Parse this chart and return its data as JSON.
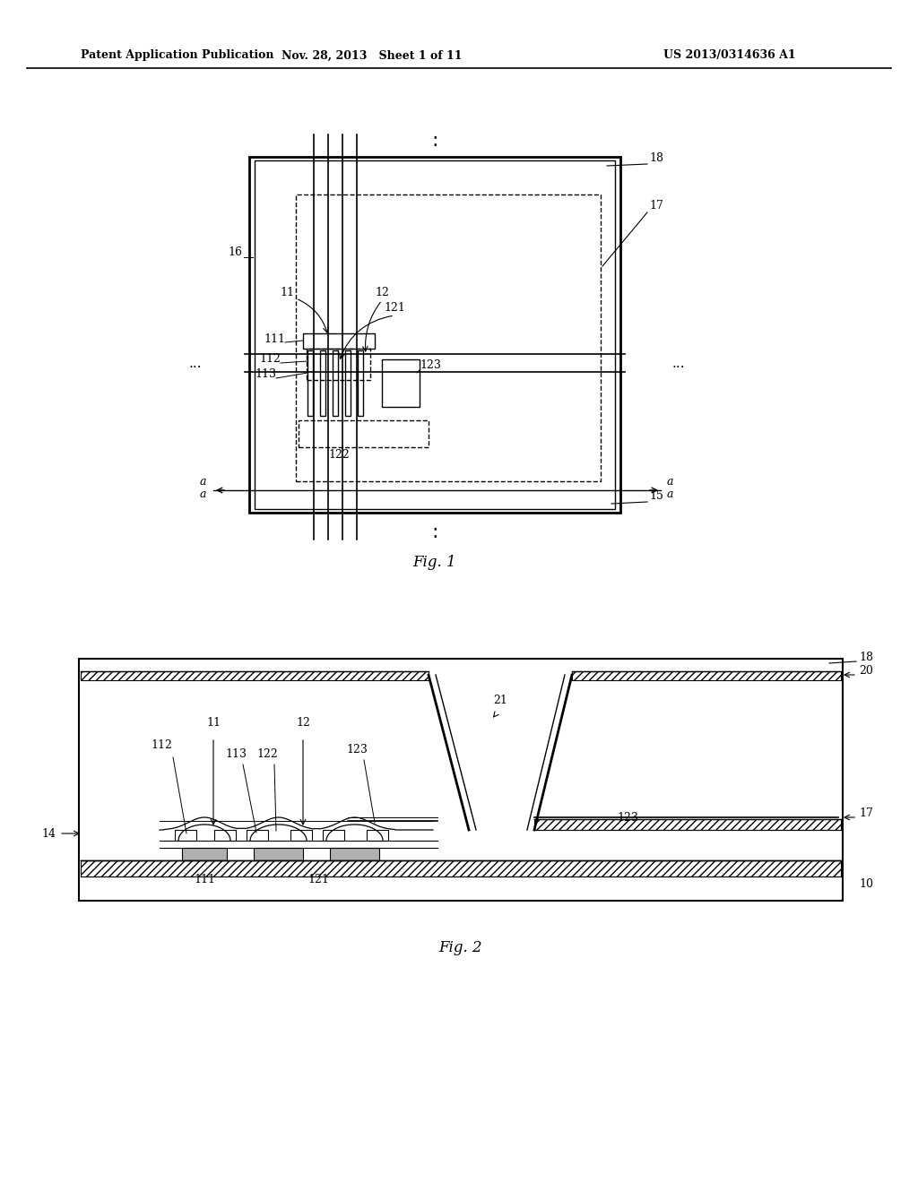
{
  "bg_color": "#ffffff",
  "header_left": "Patent Application Publication",
  "header_mid": "Nov. 28, 2013   Sheet 1 of 11",
  "header_right": "US 2013/0314636 A1",
  "fig1_label": "Fig. 1",
  "fig2_label": "Fig. 2"
}
